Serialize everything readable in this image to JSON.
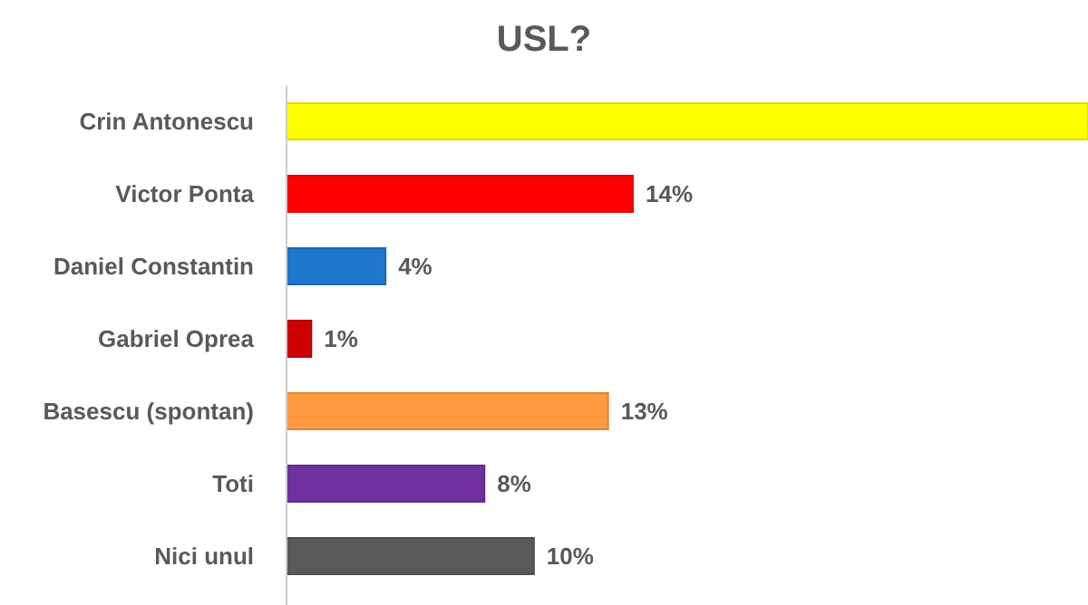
{
  "chart_data": {
    "type": "bar",
    "orientation": "horizontal",
    "title": "USL?",
    "categories": [
      "Crin Antonescu",
      "Victor Ponta",
      "Daniel Constantin",
      "Gabriel Oprea",
      "Basescu (spontan)",
      "Toti",
      "Nici unul"
    ],
    "values": [
      32.4,
      14,
      4,
      1,
      13,
      8,
      10
    ],
    "value_labels": [
      null,
      "14%",
      "4%",
      "1%",
      "13%",
      "8%",
      "10%"
    ],
    "colors": [
      "#ffff00",
      "#ff0000",
      "#1f78cc",
      "#cc0000",
      "#ff9a40",
      "#7030a0",
      "#595959"
    ],
    "xlim": [
      0,
      32.4
    ],
    "tick_labels": "y"
  }
}
